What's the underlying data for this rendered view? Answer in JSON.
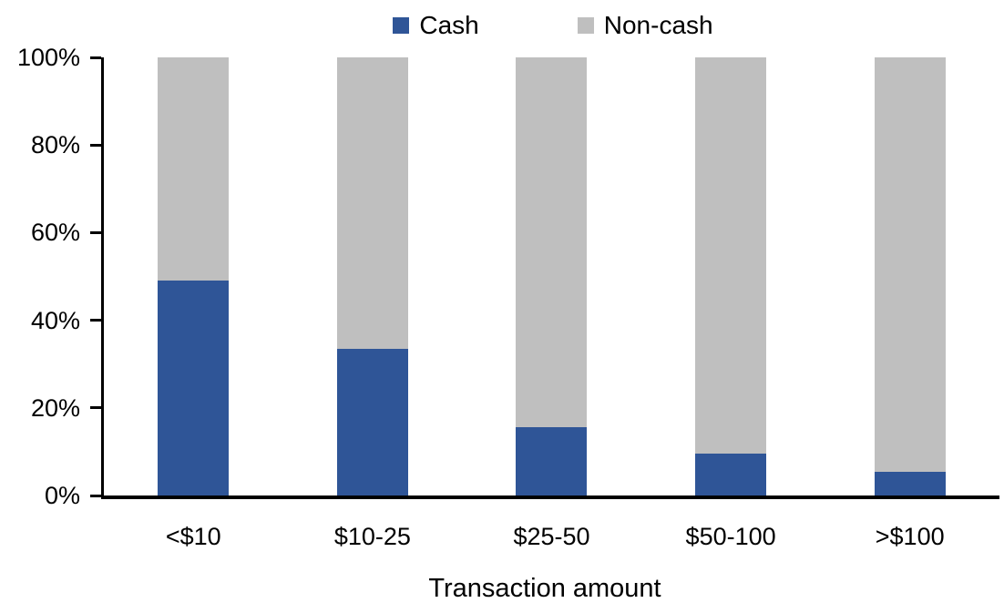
{
  "chart_data": {
    "type": "bar",
    "stacked": true,
    "percent_stacked": true,
    "title": "",
    "xlabel": "Transaction amount",
    "ylabel": "",
    "categories": [
      "<$10",
      "$10-25",
      "$25-50",
      "$50-100",
      ">$100"
    ],
    "series": [
      {
        "name": "Cash",
        "color": "#2F5597",
        "values": [
          49,
          33.5,
          15.5,
          9.5,
          5.5
        ]
      },
      {
        "name": "Non-cash",
        "color": "#BFBFBF",
        "values": [
          51,
          66.5,
          84.5,
          90.5,
          94.5
        ]
      }
    ],
    "ylim": [
      0,
      100
    ],
    "ytick_labels": [
      "0%",
      "20%",
      "40%",
      "60%",
      "80%",
      "100%"
    ],
    "ytick_values": [
      0,
      20,
      40,
      60,
      80,
      100
    ],
    "legend_position": "top",
    "grid": false,
    "axis_color": "#000000",
    "background_color": "#FFFFFF"
  }
}
